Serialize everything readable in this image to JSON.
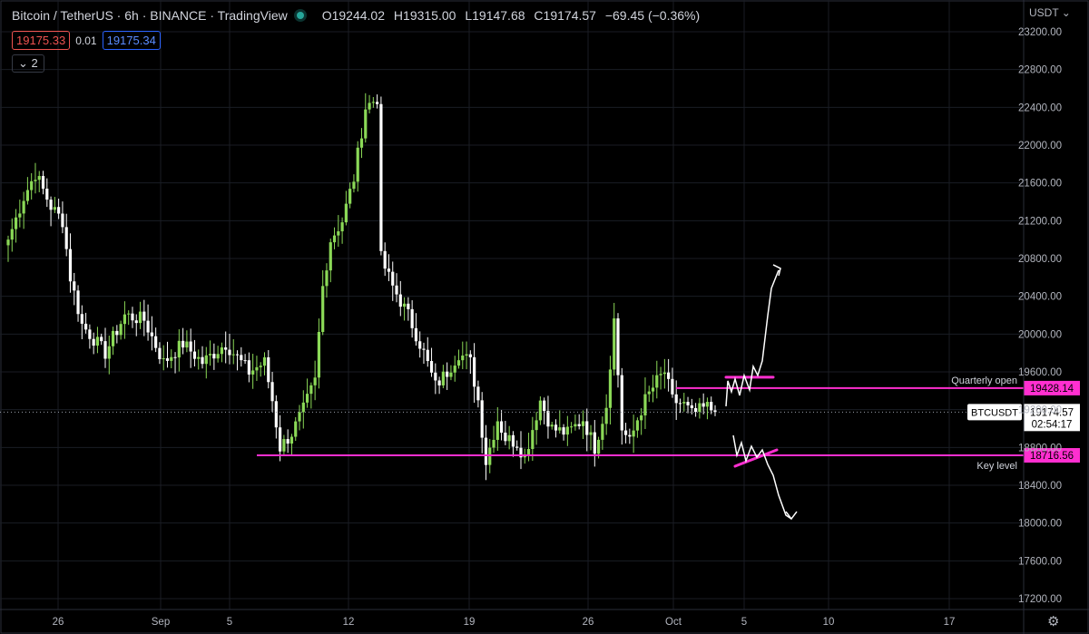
{
  "header": {
    "symbol": "Bitcoin / TetherUS · 6h · BINANCE · TradingView",
    "o_label": "O",
    "o_value": "19244.02",
    "h_label": "H",
    "h_value": "19315.00",
    "l_label": "L",
    "l_value": "19147.68",
    "c_label": "C",
    "c_value": "19174.57",
    "change": "−69.45 (−0.36%)"
  },
  "quote": {
    "bid": "19175.33",
    "spread": "0.01",
    "ask": "19175.34"
  },
  "indicator_toggle": "2",
  "currency": "USDT",
  "colors": {
    "up": "#8bd957",
    "down": "#ffffff",
    "level": "#ff2fd0",
    "grid": "#1a1d24",
    "text": "#b2b5be"
  },
  "chart_data": {
    "type": "candlestick",
    "y_ticks": [
      23200,
      22800,
      22400,
      22000,
      21600,
      21200,
      20800,
      20400,
      20000,
      19600,
      19200,
      18800,
      18400,
      18000,
      17600,
      17200
    ],
    "x_ticks": [
      "26",
      "Sep",
      "5",
      "12",
      "19",
      "26",
      "Oct",
      "5",
      "10",
      "17"
    ],
    "ylim": [
      17000,
      23400
    ],
    "levels": [
      {
        "name": "Quarterly open",
        "value": 19428.14,
        "label": "19428.14"
      },
      {
        "name": "Key level",
        "value": 18716.56,
        "label": "18716.56"
      }
    ],
    "last_price": {
      "symbol": "BTCUSDT",
      "value": 19174.57,
      "label": "19174.57",
      "countdown": "02:54:17"
    },
    "anchors": [
      {
        "i": 0,
        "p": 21000
      },
      {
        "i": 4,
        "p": 21450
      },
      {
        "i": 7,
        "p": 21700
      },
      {
        "i": 11,
        "p": 21350
      },
      {
        "i": 14,
        "p": 21200
      },
      {
        "i": 16,
        "p": 20600
      },
      {
        "i": 19,
        "p": 20100
      },
      {
        "i": 25,
        "p": 19800
      },
      {
        "i": 30,
        "p": 20200
      },
      {
        "i": 35,
        "p": 20150
      },
      {
        "i": 40,
        "p": 19700
      },
      {
        "i": 45,
        "p": 19900
      },
      {
        "i": 50,
        "p": 19700
      },
      {
        "i": 56,
        "p": 19900
      },
      {
        "i": 62,
        "p": 19600
      },
      {
        "i": 66,
        "p": 19700
      },
      {
        "i": 68,
        "p": 19300
      },
      {
        "i": 70,
        "p": 18800
      },
      {
        "i": 73,
        "p": 18950
      },
      {
        "i": 76,
        "p": 19200
      },
      {
        "i": 79,
        "p": 19500
      },
      {
        "i": 81,
        "p": 20500
      },
      {
        "i": 83,
        "p": 21000
      },
      {
        "i": 86,
        "p": 21200
      },
      {
        "i": 89,
        "p": 21650
      },
      {
        "i": 92,
        "p": 22400
      },
      {
        "i": 95,
        "p": 22500
      },
      {
        "i": 96,
        "p": 20800
      },
      {
        "i": 99,
        "p": 20500
      },
      {
        "i": 103,
        "p": 20200
      },
      {
        "i": 107,
        "p": 19800
      },
      {
        "i": 110,
        "p": 19450
      },
      {
        "i": 113,
        "p": 19600
      },
      {
        "i": 116,
        "p": 19800
      },
      {
        "i": 119,
        "p": 19700
      },
      {
        "i": 121,
        "p": 19300
      },
      {
        "i": 123,
        "p": 18650
      },
      {
        "i": 126,
        "p": 19100
      },
      {
        "i": 128,
        "p": 18900
      },
      {
        "i": 131,
        "p": 18850
      },
      {
        "i": 133,
        "p": 18700
      },
      {
        "i": 137,
        "p": 19300
      },
      {
        "i": 140,
        "p": 19000
      },
      {
        "i": 144,
        "p": 18950
      },
      {
        "i": 148,
        "p": 19100
      },
      {
        "i": 151,
        "p": 18800
      },
      {
        "i": 154,
        "p": 19250
      },
      {
        "i": 156,
        "p": 20150
      },
      {
        "i": 158,
        "p": 19000
      },
      {
        "i": 160,
        "p": 18850
      },
      {
        "i": 162,
        "p": 19100
      },
      {
        "i": 164,
        "p": 19300
      },
      {
        "i": 167,
        "p": 19500
      },
      {
        "i": 169,
        "p": 19600
      },
      {
        "i": 171,
        "p": 19300
      },
      {
        "i": 174,
        "p": 19250
      },
      {
        "i": 176,
        "p": 19150
      },
      {
        "i": 180,
        "p": 19230
      },
      {
        "i": 182,
        "p": 19174.57
      }
    ],
    "sketch": {
      "up_marks": [
        [
          19150,
          19450
        ],
        [
          19400,
          19600
        ],
        [
          19450,
          19650
        ],
        [
          20100,
          20600
        ],
        [
          20600,
          20800
        ]
      ],
      "down_marks": [
        [
          18950,
          18700
        ],
        [
          18750,
          18900
        ],
        [
          18600,
          18300
        ],
        [
          18300,
          18000
        ]
      ]
    }
  }
}
